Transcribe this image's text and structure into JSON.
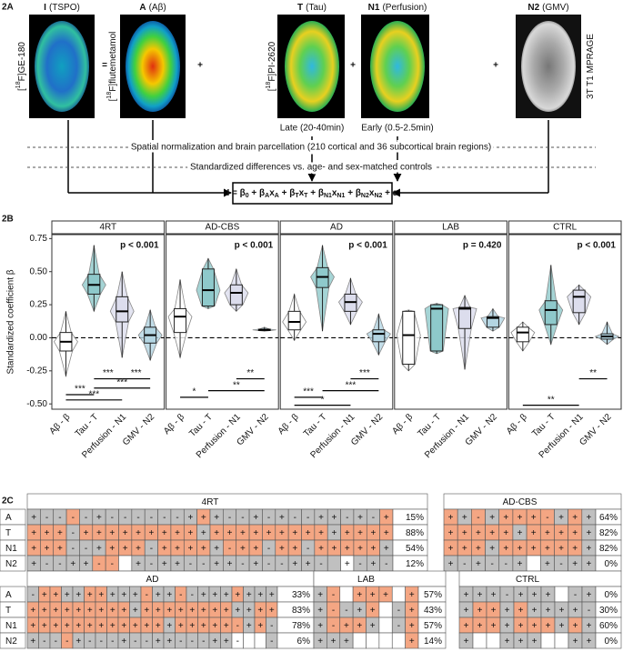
{
  "panel_a": {
    "label": "2A",
    "images": [
      {
        "code": "I",
        "name": "(TSPO)",
        "tracer": [
          "[",
          "18",
          "F]GE-180"
        ]
      },
      {
        "code": "A",
        "name": "(Aβ)",
        "tracer": [
          "[",
          "18",
          "F]flutemetamol"
        ]
      },
      {
        "code": "T",
        "name": "(Tau)",
        "tracer": [
          "[",
          "18",
          "F]PI-2620"
        ],
        "note": "Late (20-40min)"
      },
      {
        "code": "N1",
        "name": "(Perfusion)",
        "note": "Early (0.5-2.5min)"
      },
      {
        "code": "N2",
        "name": "(GMV)",
        "tracer": [
          "3T T1 MPRAGE"
        ]
      }
    ],
    "operators": [
      "=",
      "+",
      "+",
      "+"
    ],
    "steps": [
      "Spatial normalization and brain parcellation (210 cortical and 36 subcortical brain regions)",
      "Standardized differences vs. age- and sex-matched controls"
    ],
    "equation": [
      {
        "text": "I = β",
        "sub": "0"
      },
      {
        "text": " + β",
        "sub": "A"
      },
      {
        "text": "x",
        "sub": "A"
      },
      {
        "text": " + β",
        "sub": "T"
      },
      {
        "text": "x",
        "sub": "T"
      },
      {
        "text": " + β",
        "sub": "N1"
      },
      {
        "text": "x",
        "sub": "N1"
      },
      {
        "text": " + β",
        "sub": "N2"
      },
      {
        "text": "x",
        "sub": "N2"
      },
      {
        "text": " + ε"
      }
    ]
  },
  "chart_data": {
    "type": "box",
    "label": "2B",
    "y_label": "Standardized coefficient β",
    "categories": [
      "Aβ - β",
      "Tau - T",
      "Perfusion - N1",
      "GMV - N2"
    ],
    "colors": [
      "#ffffff",
      "#8ec9cb",
      "#dcdded",
      "#b3d5e2"
    ],
    "ylim": [
      -0.54,
      0.78
    ],
    "yticks": [
      {
        "value": -0.5,
        "label": "-0.50"
      },
      -0.25,
      {
        "value": 0,
        "label": "0.00"
      },
      0.25,
      {
        "value": 0.5,
        "label": "0.50"
      },
      0.75
    ],
    "facets": [
      {
        "title": "4RT",
        "p_label": "p < 0.001",
        "stats": [
          [
            -0.29,
            -0.1,
            -0.03,
            0.04,
            0.2
          ],
          [
            0.2,
            0.33,
            0.4,
            0.48,
            0.7
          ],
          [
            -0.15,
            0.12,
            0.2,
            0.31,
            0.5
          ],
          [
            -0.17,
            -0.04,
            0.02,
            0.08,
            0.21
          ]
        ],
        "brackets": [
          {
            "label": "***",
            "from": "Tau - T",
            "to": "Perfusion - N1",
            "y": -0.31
          },
          {
            "label": "***",
            "from": "Perfusion - N1",
            "to": "GMV - N2",
            "y": -0.31
          },
          {
            "label": "***",
            "from": "Tau - T",
            "to": "GMV - N2",
            "y": -0.38
          },
          {
            "label": "***",
            "from": "Aβ - β",
            "to": "Tau - T",
            "y": -0.43
          },
          {
            "label": "***",
            "from": "Aβ - β",
            "to": "Perfusion - N1",
            "y": -0.47
          }
        ]
      },
      {
        "title": "AD-CBS",
        "p_label": "p < 0.001",
        "stats": [
          [
            -0.15,
            0.04,
            0.16,
            0.22,
            0.44
          ],
          [
            0.22,
            0.24,
            0.36,
            0.52,
            0.6
          ],
          [
            0.2,
            0.25,
            0.34,
            0.4,
            0.52
          ],
          [
            0.05,
            0.055,
            0.06,
            0.065,
            0.08
          ]
        ],
        "brackets": [
          {
            "label": "**",
            "from": "Perfusion - N1",
            "to": "GMV - N2",
            "y": -0.31
          },
          {
            "label": "**",
            "from": "Tau - T",
            "to": "GMV - N2",
            "y": -0.4
          },
          {
            "label": "*",
            "from": "Aβ - β",
            "to": "Tau - T",
            "y": -0.45
          }
        ]
      },
      {
        "title": "AD",
        "p_label": "p < 0.001",
        "stats": [
          [
            -0.02,
            0.06,
            0.12,
            0.2,
            0.33
          ],
          [
            0.05,
            0.38,
            0.46,
            0.53,
            0.7
          ],
          [
            0.1,
            0.2,
            0.27,
            0.33,
            0.45
          ],
          [
            -0.13,
            -0.03,
            0.03,
            0.06,
            0.18
          ]
        ],
        "brackets": [
          {
            "label": "***",
            "from": "Perfusion - N1",
            "to": "GMV - N2",
            "y": -0.31
          },
          {
            "label": "***",
            "from": "Tau - T",
            "to": "GMV - N2",
            "y": -0.4
          },
          {
            "label": "***",
            "from": "Aβ - β",
            "to": "Tau - T",
            "y": -0.45
          },
          {
            "label": "*",
            "from": "Aβ - β",
            "to": "Perfusion - N1",
            "y": -0.51
          }
        ]
      },
      {
        "title": "LAB",
        "p_label": "p = 0.420",
        "stats": [
          [
            -0.25,
            -0.2,
            0.02,
            0.2,
            0.21
          ],
          [
            -0.12,
            -0.1,
            0.22,
            0.25,
            0.26
          ],
          [
            -0.24,
            0.07,
            0.22,
            0.23,
            0.32
          ],
          [
            0.05,
            0.08,
            0.15,
            0.16,
            0.22
          ]
        ],
        "brackets": []
      },
      {
        "title": "CTRL",
        "p_label": "p < 0.001",
        "stats": [
          [
            -0.1,
            -0.03,
            0.04,
            0.08,
            0.12
          ],
          [
            -0.05,
            0.1,
            0.21,
            0.28,
            0.55
          ],
          [
            0.1,
            0.19,
            0.31,
            0.36,
            0.4
          ],
          [
            -0.05,
            -0.01,
            0.01,
            0.03,
            0.12
          ]
        ],
        "brackets": [
          {
            "label": "**",
            "from": "Perfusion - N1",
            "to": "GMV - N2",
            "y": -0.31
          },
          {
            "label": "**",
            "from": "Aβ - β",
            "to": "Perfusion - N1",
            "y": -0.51
          }
        ]
      }
    ]
  },
  "panel_c": {
    "label": "2C",
    "row_labels": [
      "A",
      "T",
      "N1",
      "N2"
    ],
    "palette": {
      "o": "#f4a683",
      "g": "#c0c0c0",
      "w": "#ffffff"
    },
    "groups": [
      {
        "name": "4RT",
        "rows": [
          {
            "cells": [
              "+",
              "-",
              "-",
              "-",
              "-",
              "+",
              "-",
              "-",
              "-",
              "-",
              "-",
              "-",
              "+",
              "+",
              "+",
              "-",
              "-",
              "+",
              "-",
              "+",
              "-",
              "-",
              "+",
              "+",
              "-",
              "+",
              "-",
              "+"
            ],
            "fills": "gggogggggggggogggggggggggggog",
            "pct": "15%"
          },
          {
            "cells": [
              "+",
              "+",
              "+",
              "-",
              "+",
              "+",
              "+",
              "+",
              "+",
              "+",
              "+",
              "+",
              "+",
              "+",
              "+",
              "+",
              "+",
              "+",
              "+",
              "+",
              "+",
              "+",
              "+",
              "+",
              "+",
              "+",
              "+",
              "+"
            ],
            "fills": "ooogooooooooogooooooooogoooo",
            "pct": "88%"
          },
          {
            "cells": [
              "+",
              "+",
              "+",
              "-",
              "-",
              "+",
              "+",
              "+",
              "+",
              "-",
              "+",
              "+",
              "+",
              "+",
              "+",
              "-",
              "+",
              "+",
              "-",
              "+",
              "+",
              "-",
              "+",
              "+",
              "+",
              "+",
              "+",
              "+"
            ],
            "fills": "ooogggooogoooogooogoogooooog",
            "pct": "54%"
          },
          {
            "cells": [
              "+",
              "-",
              "-",
              "+",
              "+",
              "-",
              "-",
              "",
              "+",
              "-",
              "+",
              "+",
              "-",
              "-",
              "+",
              "+",
              "-",
              "+",
              "-",
              "-",
              "+",
              "+",
              "-",
              "",
              "+",
              "-",
              "+",
              "-"
            ],
            "fills": "gggggoowggggggggggggggggwggg",
            "pct": "12%"
          }
        ]
      },
      {
        "name": "AD-CBS",
        "rows": [
          {
            "cells": [
              "+",
              "+",
              "-",
              "+",
              "+",
              "+",
              "+",
              "-",
              "+",
              "+",
              "+"
            ],
            "fills": "ogogoooogog",
            "pct": "64%"
          },
          {
            "cells": [
              "+",
              "+",
              "+",
              "+",
              "+",
              "+",
              "+",
              "+",
              "+",
              "+",
              "+"
            ],
            "fills": "ooooogoooog",
            "pct": "82%"
          },
          {
            "cells": [
              "+",
              "+",
              "+",
              "+",
              "+",
              "+",
              "+",
              "+",
              "+",
              "+",
              "+"
            ],
            "fills": "ooogoooooog",
            "pct": "82%"
          },
          {
            "cells": [
              "+",
              "-",
              "+",
              "-",
              "-",
              "+",
              "",
              "+",
              "-",
              "+",
              "+"
            ],
            "fills": "ggggggwgggg",
            "pct": "0%"
          }
        ]
      },
      {
        "name": "AD",
        "rows": [
          {
            "cells": [
              "-",
              "+",
              "+",
              "+",
              "+",
              "+",
              "+",
              "+",
              "+",
              "+",
              "-",
              "+",
              "+",
              "-",
              "-",
              "+",
              "+",
              "+",
              "+",
              "+",
              "+",
              "+"
            ],
            "fills": "googgoogggoggoggggoggg",
            "pct": "33%"
          },
          {
            "cells": [
              "+",
              "+",
              "+",
              "+",
              "+",
              "+",
              "+",
              "+",
              "+",
              "+",
              "+",
              "+",
              "+",
              "+",
              "+",
              "+",
              "+",
              "+",
              "+",
              "+",
              "+",
              "+"
            ],
            "fills": "ooooooooogooooooooggoo",
            "pct": "83%"
          },
          {
            "cells": [
              "+",
              "+",
              "+",
              "+",
              "+",
              "+",
              "+",
              "+",
              "+",
              "+",
              "+",
              "+",
              "+",
              "+",
              "+",
              "+",
              "+",
              "+",
              "-",
              "+",
              "+",
              "-"
            ],
            "fills": "oooooooooooogoooooogog",
            "pct": "78%"
          },
          {
            "cells": [
              "+",
              "-",
              "-",
              "-",
              "+",
              "-",
              "-",
              "-",
              "+",
              "-",
              "-",
              "+",
              "+",
              "-",
              "-",
              "-",
              "+",
              "+",
              "-",
              "",
              "",
              "-"
            ],
            "fills": "gggoggggggggggggggwwwg",
            "pct": "6%"
          }
        ]
      },
      {
        "name": "LAB",
        "rows": [
          {
            "cells": [
              "+",
              "-",
              "",
              "+",
              "+",
              "+",
              "",
              "+"
            ],
            "fills": "gowooowo",
            "pct": "57%"
          },
          {
            "cells": [
              "+",
              "-",
              "-",
              "+",
              "+",
              "",
              "-",
              "+"
            ],
            "fills": "goggowgo",
            "pct": "43%"
          },
          {
            "cells": [
              "+",
              "-",
              "+",
              "+",
              "+",
              "",
              "-",
              "+"
            ],
            "fills": "gooogwgo",
            "pct": "57%"
          },
          {
            "cells": [
              "+",
              "+",
              "+",
              "",
              "",
              "",
              "",
              "+"
            ],
            "fills": "gggwwwwo",
            "pct": "14%"
          }
        ]
      },
      {
        "name": "CTRL",
        "rows": [
          {
            "cells": [
              "+",
              "+",
              "+",
              "-",
              "+",
              "+",
              "+",
              "",
              "-",
              "+"
            ],
            "fills": "gggggggwgg",
            "pct": "0%"
          },
          {
            "cells": [
              "+",
              "+",
              "+",
              "+",
              "+",
              "+",
              "+",
              "+",
              "+",
              "-"
            ],
            "fills": "googoggggg",
            "pct": "30%"
          },
          {
            "cells": [
              "+",
              "+",
              "+",
              "+",
              "+",
              "+",
              "+",
              "+",
              "+",
              "+"
            ],
            "fills": "ooogooogog",
            "pct": "60%"
          },
          {
            "cells": [
              "+",
              "",
              "",
              "+",
              "+",
              "+",
              "",
              "",
              "+",
              "+"
            ],
            "fills": "gwwgggwwgg",
            "pct": "0%"
          }
        ]
      }
    ]
  }
}
